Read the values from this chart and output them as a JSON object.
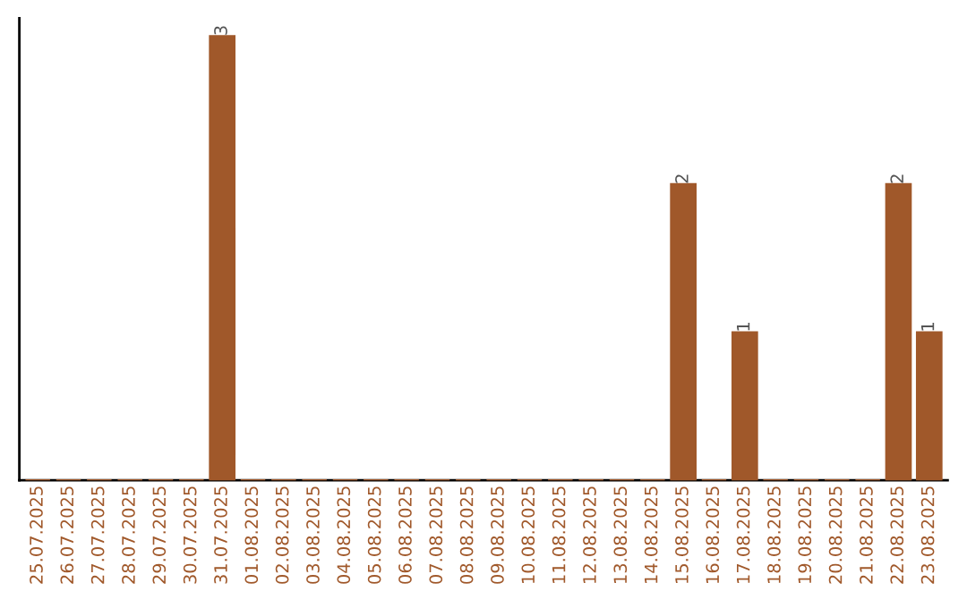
{
  "chart_data": {
    "type": "bar",
    "categories": [
      "25.07.2025",
      "26.07.2025",
      "27.07.2025",
      "28.07.2025",
      "29.07.2025",
      "30.07.2025",
      "31.07.2025",
      "01.08.2025",
      "02.08.2025",
      "03.08.2025",
      "04.08.2025",
      "05.08.2025",
      "06.08.2025",
      "07.08.2025",
      "08.08.2025",
      "09.08.2025",
      "10.08.2025",
      "11.08.2025",
      "12.08.2025",
      "13.08.2025",
      "14.08.2025",
      "15.08.2025",
      "16.08.2025",
      "17.08.2025",
      "18.08.2025",
      "19.08.2025",
      "20.08.2025",
      "21.08.2025",
      "22.08.2025",
      "23.08.2025"
    ],
    "values": [
      0,
      0,
      0,
      0,
      0,
      0,
      3,
      0,
      0,
      0,
      0,
      0,
      0,
      0,
      0,
      0,
      0,
      0,
      0,
      0,
      0,
      2,
      0,
      1,
      0,
      0,
      0,
      0,
      2,
      1
    ],
    "color": "#a0582a",
    "value_labels": [
      null,
      null,
      null,
      null,
      null,
      null,
      "3",
      null,
      null,
      null,
      null,
      null,
      null,
      null,
      null,
      null,
      null,
      null,
      null,
      null,
      null,
      "2",
      null,
      "1",
      null,
      null,
      null,
      null,
      "2",
      "1"
    ],
    "tick_labels": "x",
    "grid": false,
    "legend": false
  }
}
